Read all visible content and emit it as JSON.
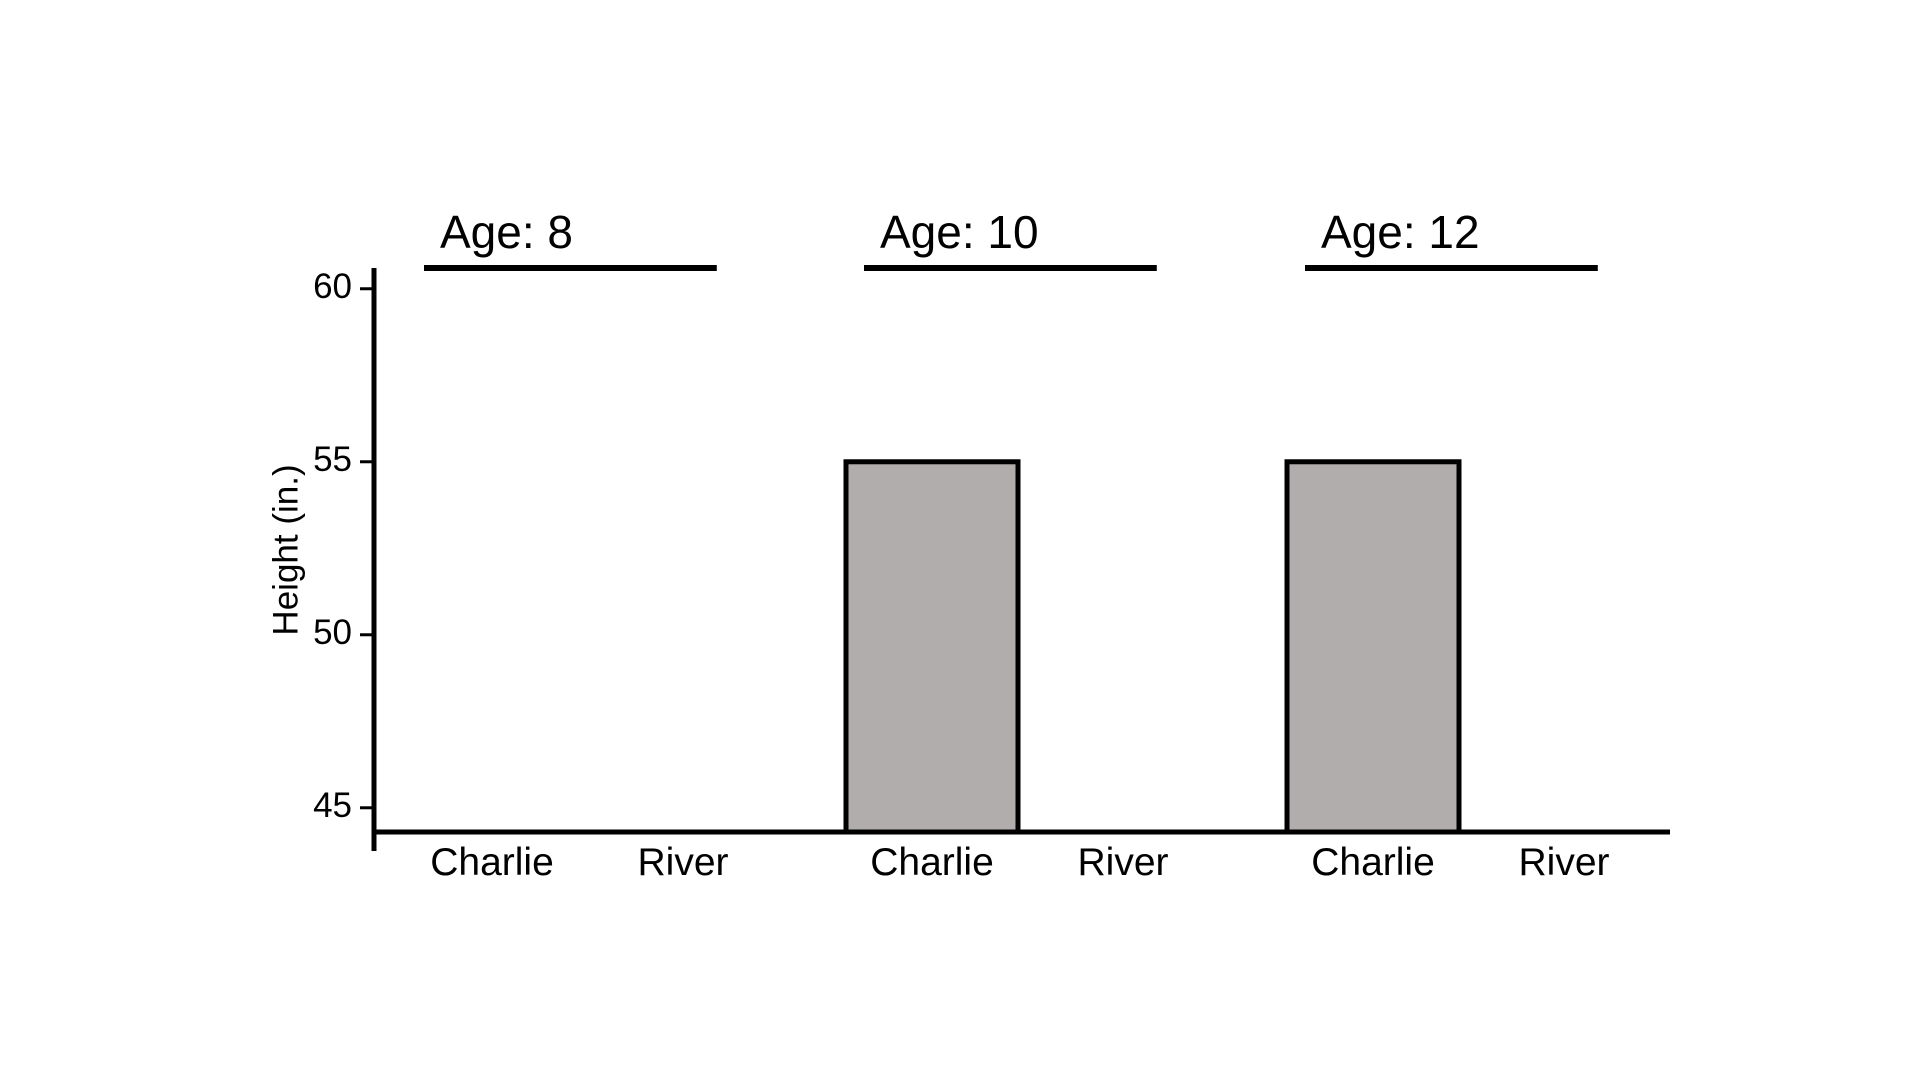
{
  "chart_data": {
    "type": "bar",
    "ylabel": "Height (in.)",
    "xlabel": "",
    "ylim": [
      44.3,
      60.6
    ],
    "yticks": [
      45,
      50,
      55,
      60
    ],
    "grid": false,
    "groups": [
      {
        "label": "Age: 8",
        "categories": [
          "Charlie",
          "River"
        ],
        "values": [
          null,
          null
        ]
      },
      {
        "label": "Age: 10",
        "categories": [
          "Charlie",
          "River"
        ],
        "values": [
          55,
          null
        ]
      },
      {
        "label": "Age: 12",
        "categories": [
          "Charlie",
          "River"
        ],
        "values": [
          55,
          null
        ]
      }
    ]
  },
  "colors": {
    "bar_fill": "#b0adac",
    "bar_stroke": "#000000",
    "axis": "#000000"
  }
}
